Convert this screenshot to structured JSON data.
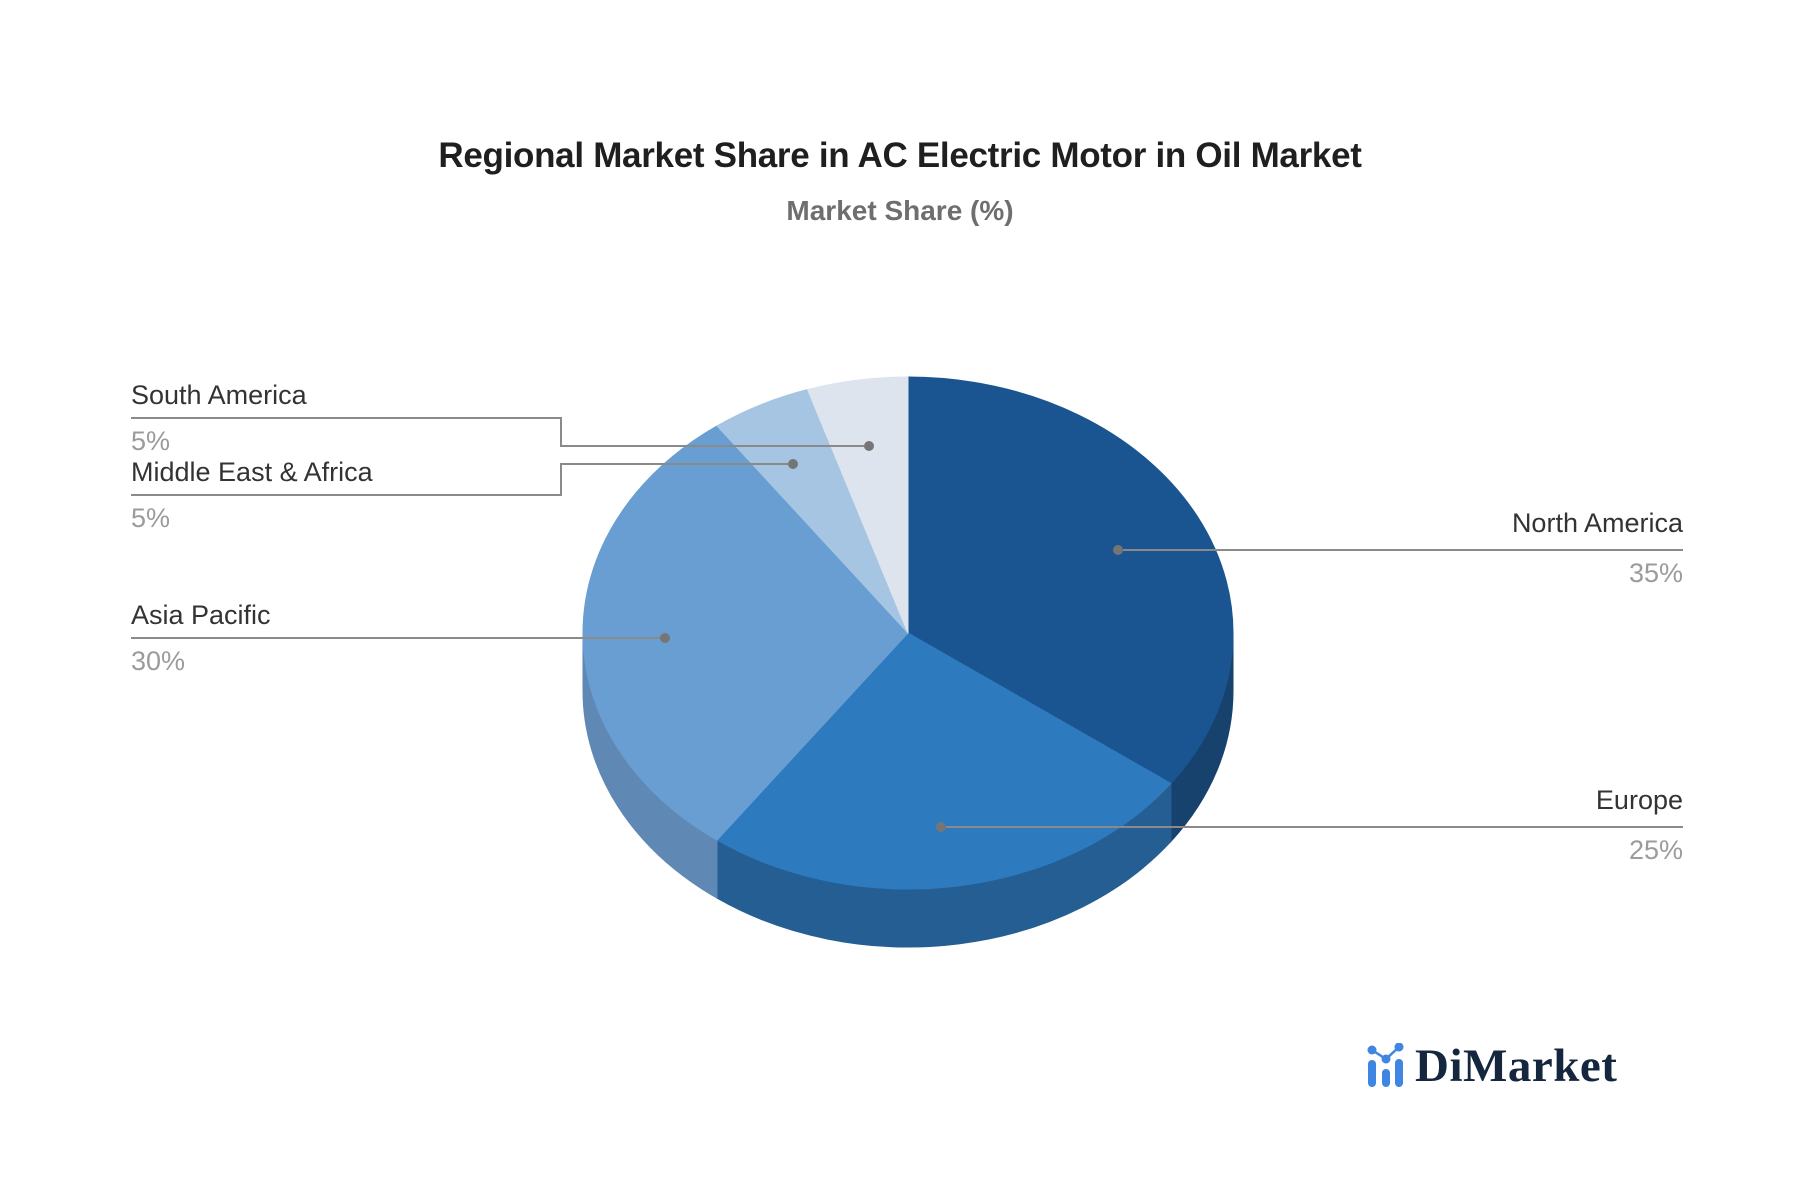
{
  "header": {
    "title": "Regional Market Share in AC Electric Motor in Oil Market",
    "subtitle": "Market Share (%)"
  },
  "chart_data": {
    "type": "pie",
    "title": "Regional Market Share in AC Electric Motor in Oil Market",
    "subtitle": "Market Share (%)",
    "unit": "%",
    "start_angle_deg": 0,
    "direction": "clockwise",
    "style": "3d-pie",
    "labels_position": "outside-with-leader-lines",
    "slices": [
      {
        "label": "North America",
        "value": 35,
        "pct_label": "35%",
        "color": "#1a5591",
        "side_color": "#16426d"
      },
      {
        "label": "Europe",
        "value": 25,
        "pct_label": "25%",
        "color": "#2e7abf",
        "side_color": "#245e92"
      },
      {
        "label": "Asia Pacific",
        "value": 30,
        "pct_label": "30%",
        "color": "#699ed2",
        "side_color": "#5f88b4"
      },
      {
        "label": "Middle East & Africa",
        "value": 5,
        "pct_label": "5%",
        "color": "#a5c5e3",
        "side_color": "#8fb2d4"
      },
      {
        "label": "South America",
        "value": 5,
        "pct_label": "5%",
        "color": "#dde4ee",
        "side_color": "#c9d4e2"
      }
    ]
  },
  "leader": {
    "line_color": "#8a8a8a",
    "dot_color": "#757575"
  },
  "logo": {
    "text": "DiMarket",
    "icon": "bar-line-chart-icon",
    "text_color": "#15273e",
    "icon_color": "#3e86e2"
  }
}
